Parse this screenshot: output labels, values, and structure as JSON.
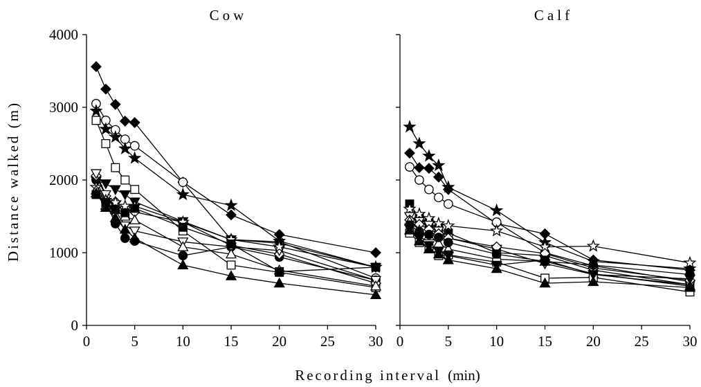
{
  "figure": {
    "ylabel": "Distance walked (m)",
    "xlabel": "Recording interval",
    "xlabel_unit": "(min)"
  },
  "chart_data": [
    {
      "type": "line",
      "title": "Cow",
      "x": [
        1,
        2,
        3,
        4,
        5,
        10,
        15,
        20,
        30
      ],
      "xticks": [
        0,
        5,
        10,
        15,
        20,
        25,
        30
      ],
      "yticks": [
        0,
        1000,
        2000,
        3000,
        4000
      ],
      "xlim": [
        0,
        30
      ],
      "ylim": [
        0,
        4000
      ],
      "series": [
        {
          "marker": "diamond-filled",
          "values": [
            3560,
            3250,
            3040,
            2810,
            2790,
            1970,
            1520,
            1250,
            1000
          ]
        },
        {
          "marker": "circle-open",
          "values": [
            3050,
            2820,
            2690,
            2560,
            2470,
            1970,
            1180,
            1150,
            650
          ]
        },
        {
          "marker": "star-filled",
          "values": [
            2950,
            2700,
            2590,
            2430,
            2300,
            1800,
            1650,
            1160,
            800
          ]
        },
        {
          "marker": "square-open",
          "values": [
            2820,
            2500,
            2170,
            2000,
            1870,
            1300,
            830,
            730,
            520
          ]
        },
        {
          "marker": "circle-filled",
          "values": [
            2000,
            1700,
            1400,
            1200,
            1160,
            960,
            1080,
            940,
            620
          ]
        },
        {
          "marker": "tri-down-filled",
          "values": [
            1990,
            1950,
            1870,
            1800,
            1700,
            1430,
            1180,
            1130,
            800
          ]
        },
        {
          "marker": "diamond-open",
          "values": [
            2060,
            1780,
            1700,
            1620,
            1560,
            1420,
            1100,
            980,
            580
          ]
        },
        {
          "marker": "tri-down-open",
          "values": [
            2090,
            1800,
            1580,
            1370,
            1300,
            1150,
            1080,
            1030,
            620
          ]
        },
        {
          "marker": "star-open",
          "values": [
            1900,
            1720,
            1690,
            1640,
            1640,
            1420,
            1180,
            1080,
            800
          ]
        },
        {
          "marker": "tri-up-open",
          "values": [
            1860,
            1650,
            1590,
            1500,
            1450,
            1080,
            980,
            760,
            540
          ]
        },
        {
          "marker": "square-filled",
          "values": [
            1800,
            1690,
            1600,
            1550,
            1610,
            1350,
            1120,
            740,
            800
          ]
        },
        {
          "marker": "tri-up-filled",
          "values": [
            1820,
            1620,
            1480,
            1320,
            1200,
            830,
            680,
            580,
            420
          ]
        }
      ]
    },
    {
      "type": "line",
      "title": "Calf",
      "x": [
        1,
        2,
        3,
        4,
        5,
        10,
        15,
        20,
        30
      ],
      "xticks": [
        0,
        5,
        10,
        15,
        20,
        25,
        30
      ],
      "yticks": [
        0,
        1000,
        2000,
        3000,
        4000
      ],
      "xlim": [
        0,
        30
      ],
      "ylim": [
        0,
        4000
      ],
      "series": [
        {
          "marker": "star-filled",
          "values": [
            2730,
            2500,
            2330,
            2200,
            1900,
            1580,
            1140,
            880,
            780
          ]
        },
        {
          "marker": "diamond-filled",
          "values": [
            2370,
            2170,
            2160,
            2040,
            1870,
            1400,
            1260,
            900,
            760
          ]
        },
        {
          "marker": "circle-open",
          "values": [
            2180,
            2000,
            1870,
            1760,
            1670,
            1420,
            1000,
            820,
            600
          ]
        },
        {
          "marker": "square-filled",
          "values": [
            1670,
            1480,
            1410,
            1330,
            1270,
            1000,
            960,
            760,
            560
          ]
        },
        {
          "marker": "star-open",
          "values": [
            1600,
            1530,
            1470,
            1400,
            1370,
            1300,
            1080,
            1090,
            860
          ]
        },
        {
          "marker": "tri-down-open",
          "values": [
            1500,
            1430,
            1380,
            1300,
            1200,
            1050,
            850,
            700,
            560
          ]
        },
        {
          "marker": "diamond-open",
          "values": [
            1450,
            1390,
            1320,
            1260,
            1200,
            1080,
            990,
            790,
            620
          ]
        },
        {
          "marker": "tri-up-open",
          "values": [
            1430,
            1310,
            1230,
            1130,
            1050,
            910,
            880,
            710,
            540
          ]
        },
        {
          "marker": "circle-filled",
          "values": [
            1380,
            1290,
            1250,
            1210,
            1140,
            980,
            880,
            830,
            700
          ]
        },
        {
          "marker": "square-open",
          "values": [
            1270,
            1140,
            1060,
            960,
            970,
            870,
            650,
            660,
            460
          ]
        },
        {
          "marker": "tri-down-filled",
          "values": [
            1340,
            1200,
            1100,
            1020,
            960,
            830,
            900,
            700,
            640
          ]
        },
        {
          "marker": "tri-up-filled",
          "values": [
            1310,
            1160,
            1050,
            980,
            900,
            780,
            580,
            600,
            520
          ]
        }
      ]
    }
  ]
}
